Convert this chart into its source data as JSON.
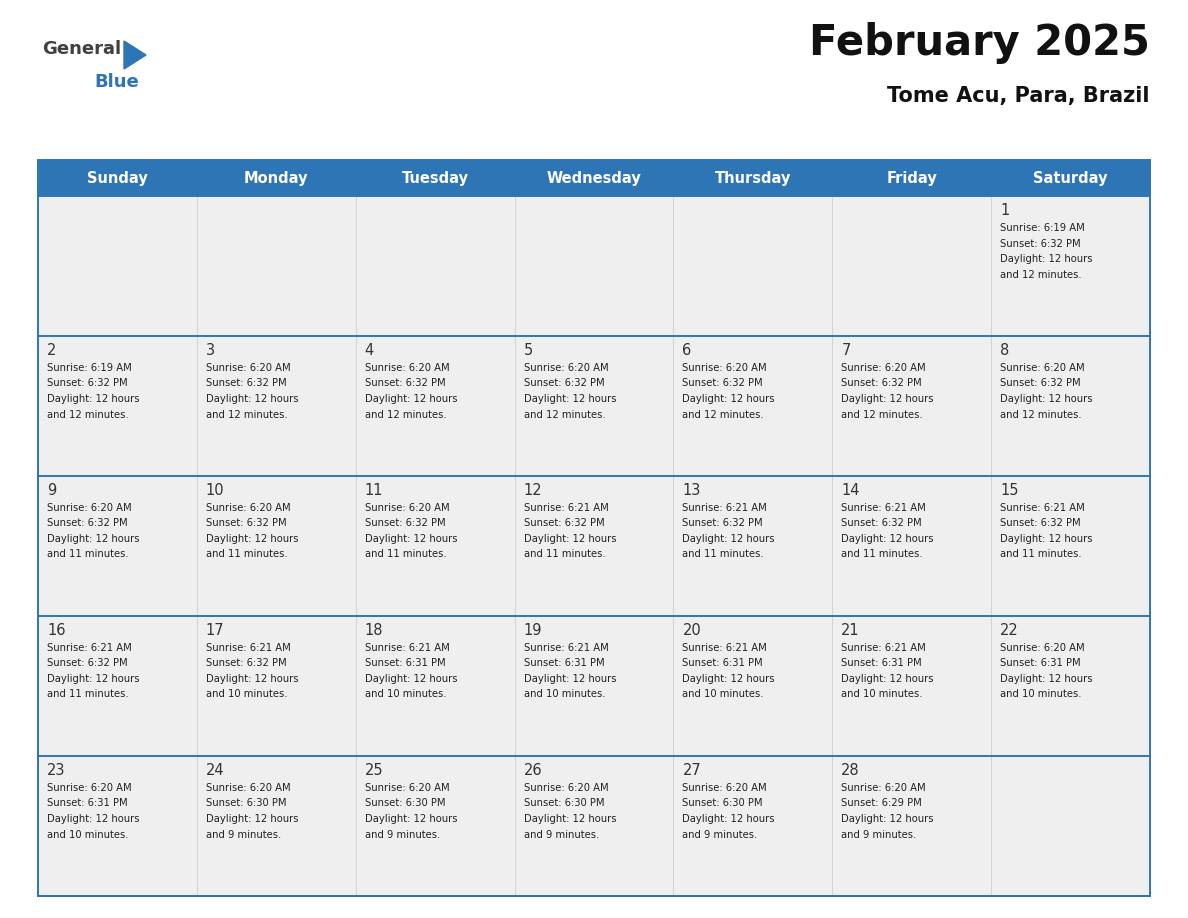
{
  "title": "February 2025",
  "subtitle": "Tome Acu, Para, Brazil",
  "days_of_week": [
    "Sunday",
    "Monday",
    "Tuesday",
    "Wednesday",
    "Thursday",
    "Friday",
    "Saturday"
  ],
  "header_bg": "#2E75B6",
  "header_text": "#FFFFFF",
  "cell_bg_light": "#EFEFEF",
  "border_color": "#2E75B6",
  "row_line_color": "#2E75B6",
  "text_color": "#222222",
  "calendar_data": [
    [
      null,
      null,
      null,
      null,
      null,
      null,
      {
        "day": 1,
        "sunrise": "6:19 AM",
        "sunset": "6:32 PM",
        "daylight": "12 hours",
        "daylight2": "and 12 minutes."
      }
    ],
    [
      {
        "day": 2,
        "sunrise": "6:19 AM",
        "sunset": "6:32 PM",
        "daylight": "12 hours",
        "daylight2": "and 12 minutes."
      },
      {
        "day": 3,
        "sunrise": "6:20 AM",
        "sunset": "6:32 PM",
        "daylight": "12 hours",
        "daylight2": "and 12 minutes."
      },
      {
        "day": 4,
        "sunrise": "6:20 AM",
        "sunset": "6:32 PM",
        "daylight": "12 hours",
        "daylight2": "and 12 minutes."
      },
      {
        "day": 5,
        "sunrise": "6:20 AM",
        "sunset": "6:32 PM",
        "daylight": "12 hours",
        "daylight2": "and 12 minutes."
      },
      {
        "day": 6,
        "sunrise": "6:20 AM",
        "sunset": "6:32 PM",
        "daylight": "12 hours",
        "daylight2": "and 12 minutes."
      },
      {
        "day": 7,
        "sunrise": "6:20 AM",
        "sunset": "6:32 PM",
        "daylight": "12 hours",
        "daylight2": "and 12 minutes."
      },
      {
        "day": 8,
        "sunrise": "6:20 AM",
        "sunset": "6:32 PM",
        "daylight": "12 hours",
        "daylight2": "and 12 minutes."
      }
    ],
    [
      {
        "day": 9,
        "sunrise": "6:20 AM",
        "sunset": "6:32 PM",
        "daylight": "12 hours",
        "daylight2": "and 11 minutes."
      },
      {
        "day": 10,
        "sunrise": "6:20 AM",
        "sunset": "6:32 PM",
        "daylight": "12 hours",
        "daylight2": "and 11 minutes."
      },
      {
        "day": 11,
        "sunrise": "6:20 AM",
        "sunset": "6:32 PM",
        "daylight": "12 hours",
        "daylight2": "and 11 minutes."
      },
      {
        "day": 12,
        "sunrise": "6:21 AM",
        "sunset": "6:32 PM",
        "daylight": "12 hours",
        "daylight2": "and 11 minutes."
      },
      {
        "day": 13,
        "sunrise": "6:21 AM",
        "sunset": "6:32 PM",
        "daylight": "12 hours",
        "daylight2": "and 11 minutes."
      },
      {
        "day": 14,
        "sunrise": "6:21 AM",
        "sunset": "6:32 PM",
        "daylight": "12 hours",
        "daylight2": "and 11 minutes."
      },
      {
        "day": 15,
        "sunrise": "6:21 AM",
        "sunset": "6:32 PM",
        "daylight": "12 hours",
        "daylight2": "and 11 minutes."
      }
    ],
    [
      {
        "day": 16,
        "sunrise": "6:21 AM",
        "sunset": "6:32 PM",
        "daylight": "12 hours",
        "daylight2": "and 11 minutes."
      },
      {
        "day": 17,
        "sunrise": "6:21 AM",
        "sunset": "6:32 PM",
        "daylight": "12 hours",
        "daylight2": "and 10 minutes."
      },
      {
        "day": 18,
        "sunrise": "6:21 AM",
        "sunset": "6:31 PM",
        "daylight": "12 hours",
        "daylight2": "and 10 minutes."
      },
      {
        "day": 19,
        "sunrise": "6:21 AM",
        "sunset": "6:31 PM",
        "daylight": "12 hours",
        "daylight2": "and 10 minutes."
      },
      {
        "day": 20,
        "sunrise": "6:21 AM",
        "sunset": "6:31 PM",
        "daylight": "12 hours",
        "daylight2": "and 10 minutes."
      },
      {
        "day": 21,
        "sunrise": "6:21 AM",
        "sunset": "6:31 PM",
        "daylight": "12 hours",
        "daylight2": "and 10 minutes."
      },
      {
        "day": 22,
        "sunrise": "6:20 AM",
        "sunset": "6:31 PM",
        "daylight": "12 hours",
        "daylight2": "and 10 minutes."
      }
    ],
    [
      {
        "day": 23,
        "sunrise": "6:20 AM",
        "sunset": "6:31 PM",
        "daylight": "12 hours",
        "daylight2": "and 10 minutes."
      },
      {
        "day": 24,
        "sunrise": "6:20 AM",
        "sunset": "6:30 PM",
        "daylight": "12 hours",
        "daylight2": "and 9 minutes."
      },
      {
        "day": 25,
        "sunrise": "6:20 AM",
        "sunset": "6:30 PM",
        "daylight": "12 hours",
        "daylight2": "and 9 minutes."
      },
      {
        "day": 26,
        "sunrise": "6:20 AM",
        "sunset": "6:30 PM",
        "daylight": "12 hours",
        "daylight2": "and 9 minutes."
      },
      {
        "day": 27,
        "sunrise": "6:20 AM",
        "sunset": "6:30 PM",
        "daylight": "12 hours",
        "daylight2": "and 9 minutes."
      },
      {
        "day": 28,
        "sunrise": "6:20 AM",
        "sunset": "6:29 PM",
        "daylight": "12 hours",
        "daylight2": "and 9 minutes."
      },
      null
    ]
  ],
  "fig_width": 11.88,
  "fig_height": 9.18,
  "dpi": 100
}
